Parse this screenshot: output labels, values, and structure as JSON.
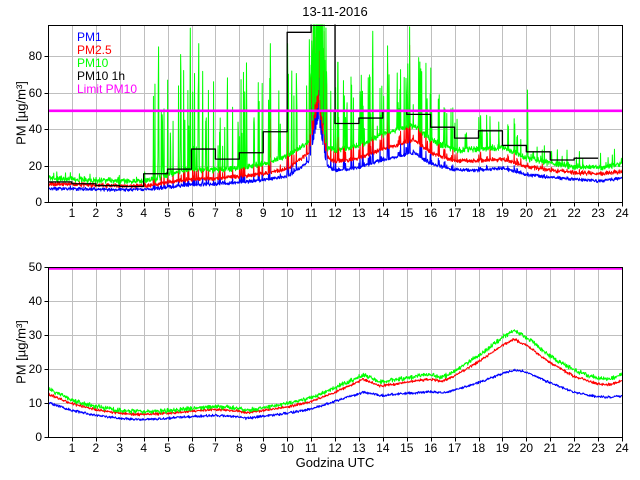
{
  "title": "13-11-2016",
  "xlabel": "Godzina UTC",
  "colors": {
    "pm1": "#0000ff",
    "pm2_5": "#ff0000",
    "pm10": "#00ff00",
    "pm10_1h": "#000000",
    "limit": "#ff00ff",
    "grid": "#bfbfbf",
    "axis": "#000000",
    "background": "#ffffff"
  },
  "chart_data": [
    {
      "type": "line",
      "title": "13-11-2016",
      "ylabel": "PM [µg/m³]",
      "xlabel": "",
      "xlim": [
        0,
        24
      ],
      "ylim": [
        0,
        97
      ],
      "xticks": [
        1,
        2,
        3,
        4,
        5,
        6,
        7,
        8,
        9,
        10,
        11,
        12,
        13,
        14,
        15,
        16,
        17,
        18,
        19,
        20,
        21,
        22,
        23,
        24
      ],
      "yticks": [
        0,
        20,
        40,
        60,
        80
      ],
      "grid": true,
      "legend_position": "top-left",
      "legend": [
        {
          "label": "PM1",
          "color": "#0000ff"
        },
        {
          "label": "PM2.5",
          "color": "#ff0000"
        },
        {
          "label": "PM10",
          "color": "#00ff00"
        },
        {
          "label": "PM10 1h",
          "color": "#000000"
        },
        {
          "label": "Limit PM10",
          "color": "#ff00ff"
        }
      ],
      "anchors_x": [
        0,
        1,
        2,
        3,
        4,
        4.5,
        5,
        6,
        7,
        8,
        9,
        10,
        10.9,
        11.3,
        11.65,
        12,
        13,
        14,
        15,
        15.3,
        16,
        17,
        18,
        19,
        20,
        21,
        22,
        23,
        24
      ],
      "series": [
        {
          "name": "PM1",
          "color": "#0000ff",
          "values": [
            7.2,
            7.3,
            7.0,
            6.7,
            7.0,
            7.3,
            8.2,
            9.5,
            9.8,
            10.8,
            12,
            14,
            22,
            46,
            20,
            17,
            19,
            23,
            26,
            27,
            21,
            17.5,
            17.5,
            18.5,
            15,
            13.5,
            12.5,
            11.5,
            13
          ]
        },
        {
          "name": "PM2.5",
          "color": "#ff0000",
          "values": [
            9.8,
            9.6,
            9.2,
            8.8,
            9.0,
            9.4,
            10.8,
            12.5,
            12.8,
            14,
            15.5,
            18,
            27,
            54,
            25,
            22,
            24,
            29,
            33,
            34,
            27,
            22.5,
            22.5,
            23.5,
            19.5,
            17.5,
            16,
            15.5,
            16.5
          ]
        },
        {
          "name": "PM10",
          "color": "#00ff00",
          "values": [
            13,
            12.5,
            11.8,
            11.3,
            11.8,
            12.5,
            15,
            18,
            17.5,
            18.5,
            21,
            25,
            33,
            62,
            30,
            28,
            31,
            37,
            41,
            42,
            34,
            28.5,
            29,
            30,
            24,
            21.5,
            19.5,
            19,
            21
          ]
        }
      ],
      "hourly_stairs": {
        "name": "PM10 1h",
        "color": "#000000",
        "description": "hourly PM10 mean, one value per hour starting at hour 0, stairs end at hour 23",
        "values": [
          11,
          10,
          9,
          8.5,
          15.5,
          18,
          29,
          23.5,
          27,
          38.5,
          93,
          105,
          43,
          46,
          50,
          48,
          41,
          35,
          39,
          31,
          27.5,
          23,
          24
        ],
        "ends_at_hour": 23,
        "note": "hour 11-12 mean exceeds the y-axis maximum and is clipped at the top of the axes"
      },
      "limit_line": {
        "name": "Limit PM10",
        "value": 50,
        "color": "#ff00ff"
      },
      "render_hints": {
        "seed": 11,
        "samples": 1900,
        "noise": {
          "pm1": 1.1,
          "pm2_5": 1.4,
          "pm10": 2.0
        },
        "spike_regions": [
          {
            "from": 0.0,
            "to": 4.4,
            "p": 0.02,
            "lo": 1,
            "hi": 4,
            "f25": 0.3,
            "f1": 0.2
          },
          {
            "from": 4.4,
            "to": 10.9,
            "p": 0.11,
            "lo": 8,
            "hi": 55,
            "f25": 0.28,
            "f1": 0.15
          },
          {
            "from": 10.9,
            "to": 11.65,
            "p": 0.6,
            "lo": 25,
            "hi": 80,
            "f25": 0.85,
            "f1": 0.72
          },
          {
            "from": 11.65,
            "to": 16.5,
            "p": 0.13,
            "lo": 6,
            "hi": 40,
            "f25": 0.35,
            "f1": 0.2
          },
          {
            "from": 16.5,
            "to": 20.0,
            "p": 0.09,
            "lo": 4,
            "hi": 22,
            "f25": 0.25,
            "f1": 0.12
          },
          {
            "from": 20.0,
            "to": 24.01,
            "p": 0.06,
            "lo": 2,
            "hi": 10,
            "f25": 0.2,
            "f1": 0.1
          }
        ],
        "spike_events": [
          {
            "h": 4.62,
            "pm10": 95
          },
          {
            "h": 4.78,
            "pm10": 58
          },
          {
            "h": 5.12,
            "pm10": 44
          },
          {
            "h": 5.55,
            "pm10": 96
          },
          {
            "h": 5.95,
            "pm10": 97
          },
          {
            "h": 6.3,
            "pm10": 97
          },
          {
            "h": 6.6,
            "pm10": 56
          },
          {
            "h": 7.2,
            "pm10": 46
          },
          {
            "h": 7.5,
            "pm10": 76
          },
          {
            "h": 7.95,
            "pm10": 52
          },
          {
            "h": 8.3,
            "pm10": 79
          },
          {
            "h": 8.62,
            "pm10": 56
          },
          {
            "h": 9.3,
            "pm10": 97,
            "pm2_5": 52
          },
          {
            "h": 9.65,
            "pm10": 62
          },
          {
            "h": 10.02,
            "pm10": 97,
            "pm2_5": 56,
            "pm1": 40
          },
          {
            "h": 10.4,
            "pm10": 72
          },
          {
            "h": 12.12,
            "pm10": 97,
            "pm2_5": 62
          },
          {
            "h": 12.5,
            "pm10": 66
          },
          {
            "h": 13.1,
            "pm10": 72
          },
          {
            "h": 13.58,
            "pm10": 97,
            "pm2_5": 76,
            "pm1": 56
          },
          {
            "h": 14.2,
            "pm10": 92,
            "pm2_5": 82,
            "pm1": 62
          },
          {
            "h": 14.6,
            "pm10": 76
          },
          {
            "h": 15.12,
            "pm10": 96,
            "pm2_5": 86,
            "pm1": 66
          },
          {
            "h": 15.5,
            "pm10": 82,
            "pm2_5": 62
          },
          {
            "h": 15.85,
            "pm10": 62
          },
          {
            "h": 16.35,
            "pm10": 56
          },
          {
            "h": 16.85,
            "pm10": 52
          },
          {
            "h": 17.45,
            "pm10": 46
          },
          {
            "h": 18.15,
            "pm10": 42
          },
          {
            "h": 18.85,
            "pm10": 50
          },
          {
            "h": 20.05,
            "pm10": 70
          },
          {
            "h": 21.3,
            "pm10": 32
          },
          {
            "h": 23.6,
            "pm10": 30
          }
        ]
      }
    },
    {
      "type": "line",
      "title": "",
      "ylabel": "PM [µg/m³]",
      "xlabel": "Godzina UTC",
      "xlim": [
        0,
        24
      ],
      "ylim": [
        0,
        50
      ],
      "xticks": [
        1,
        2,
        3,
        4,
        5,
        6,
        7,
        8,
        9,
        10,
        11,
        12,
        13,
        14,
        15,
        16,
        17,
        18,
        19,
        20,
        21,
        22,
        23,
        24
      ],
      "yticks": [
        0,
        10,
        20,
        30,
        40,
        50
      ],
      "grid": true,
      "legend": [],
      "anchors_x": [
        0,
        1,
        2,
        3,
        4,
        5,
        6,
        7,
        8,
        8.3,
        9,
        10,
        11,
        12,
        13.2,
        13.9,
        15,
        15.9,
        16.5,
        17,
        18,
        19,
        19.5,
        20,
        21,
        22,
        23,
        23.5,
        24
      ],
      "series": [
        {
          "name": "PM1",
          "color": "#0000ff",
          "values": [
            10.2,
            7.8,
            6.4,
            5.5,
            5.1,
            5.5,
            6.0,
            6.4,
            5.9,
            5.5,
            6.1,
            7.0,
            8.2,
            10.5,
            13.2,
            12.2,
            12.8,
            13.3,
            13.0,
            13.8,
            16.0,
            18.7,
            19.7,
            19.1,
            15.9,
            13.2,
            11.8,
            11.7,
            12.2
          ]
        },
        {
          "name": "PM2.5",
          "color": "#ff0000",
          "values": [
            12.6,
            9.8,
            8.1,
            7.0,
            6.6,
            7.0,
            7.6,
            8.1,
            7.6,
            7.1,
            7.8,
            8.9,
            10.4,
            13.2,
            17.0,
            15.0,
            16.1,
            17.0,
            16.4,
            18.0,
            22.1,
            27.0,
            28.7,
            27.0,
            21.8,
            17.8,
            15.6,
            15.4,
            16.6
          ]
        },
        {
          "name": "PM10",
          "color": "#00ff00",
          "values": [
            14.2,
            10.8,
            9.0,
            7.8,
            7.4,
            7.8,
            8.4,
            9.0,
            8.4,
            7.9,
            8.6,
            9.8,
            11.5,
            14.5,
            18.3,
            16.2,
            17.4,
            18.4,
            17.6,
            19.4,
            23.8,
            29.3,
            31.4,
            29.4,
            23.8,
            19.6,
            17.2,
            17.0,
            18.4
          ]
        }
      ],
      "limit_line": {
        "name": "Limit PM10",
        "value": 50,
        "color": "#ff00ff"
      },
      "render_hints": {
        "seed": 23,
        "samples": 1500,
        "noise": {
          "pm1": 0.45,
          "pm2_5": 0.5,
          "pm10": 0.8
        },
        "spike_regions": [],
        "spike_events": []
      }
    }
  ]
}
